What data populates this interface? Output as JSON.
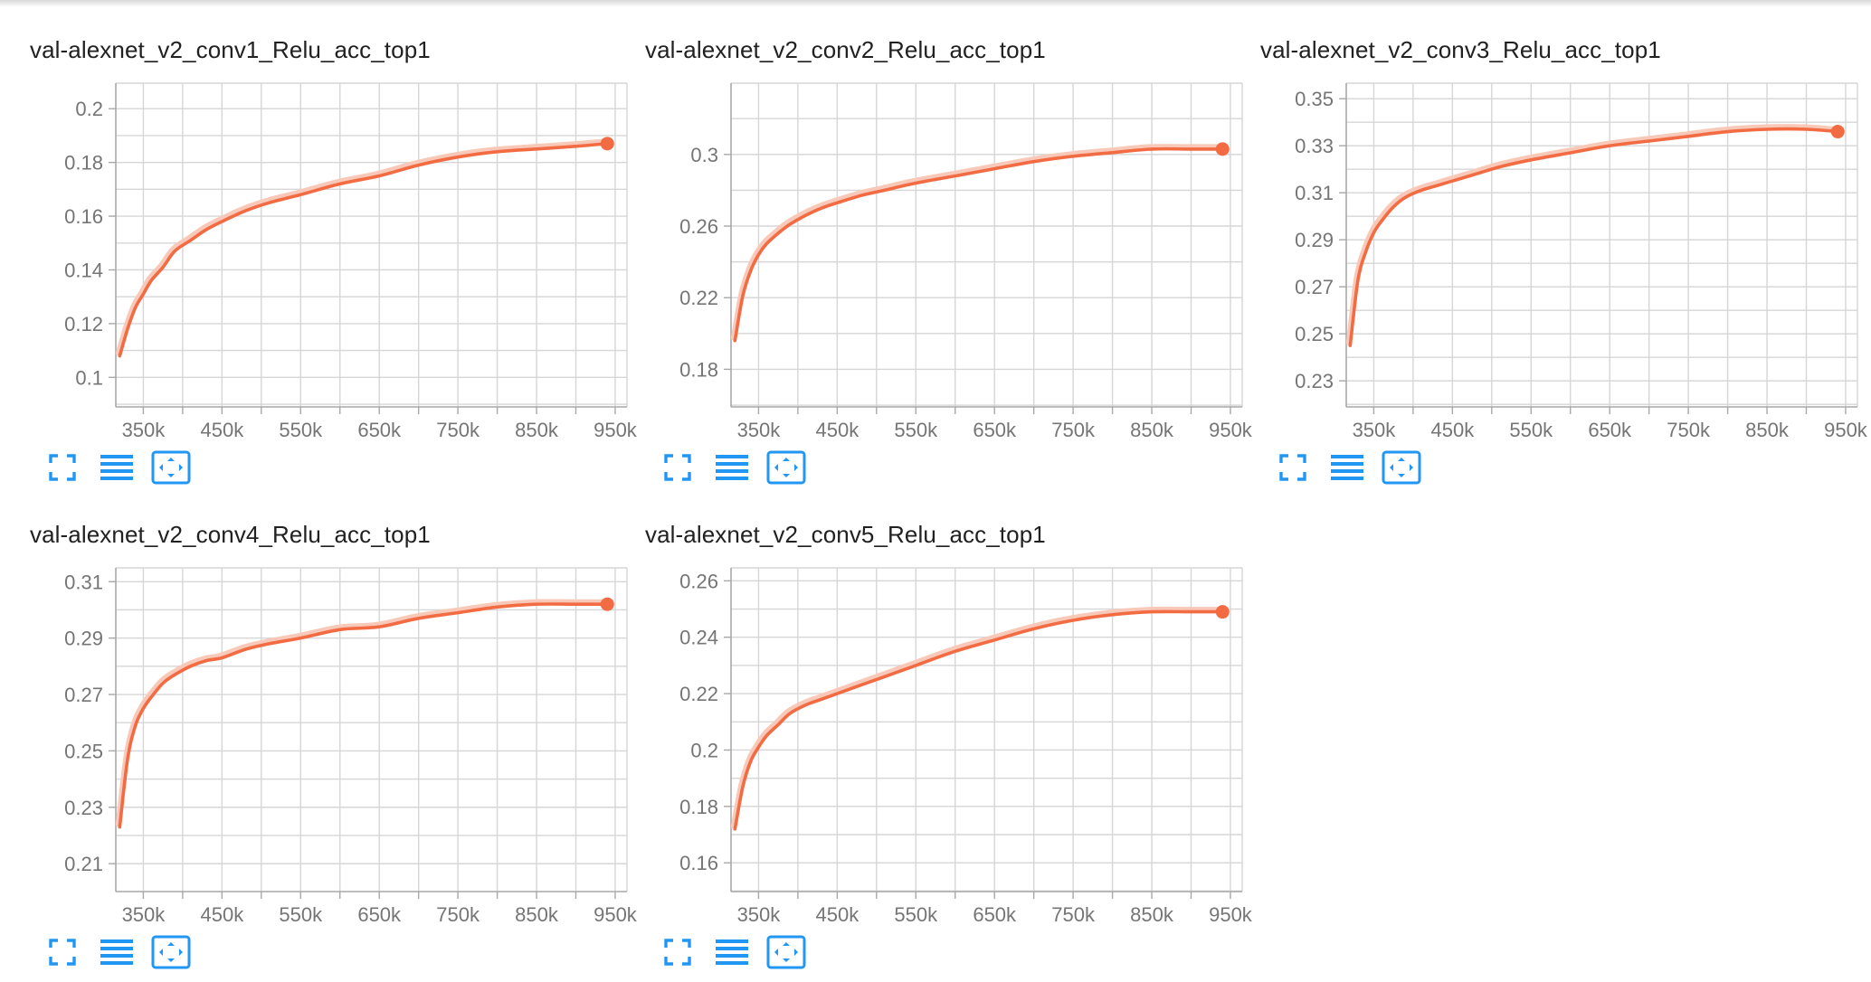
{
  "colors": {
    "line": "#f26b43",
    "line_raw": "#f8c9b8",
    "grid": "#d6d6d6",
    "axis": "#a8a8a8",
    "tick_text": "#757575",
    "icon": "#2196f3"
  },
  "toolbar": {
    "icons": [
      "fullscreen-icon",
      "data-table-icon",
      "fit-domain-icon"
    ]
  },
  "chart_data": [
    {
      "type": "line",
      "title": "val-alexnet_v2_conv1_Relu_acc_top1",
      "x": [
        320,
        330,
        340,
        350,
        360,
        375,
        390,
        410,
        430,
        450,
        480,
        510,
        550,
        600,
        650,
        700,
        750,
        800,
        850,
        900,
        940
      ],
      "x_ticks": [
        350,
        450,
        550,
        650,
        750,
        850,
        950
      ],
      "x_tick_labels": [
        "350k",
        "450k",
        "550k",
        "650k",
        "750k",
        "850k",
        "950k"
      ],
      "xlim": [
        315,
        965
      ],
      "y_ticks": [
        0.1,
        0.12,
        0.14,
        0.16,
        0.18,
        0.2
      ],
      "y_tick_labels": [
        "0.1",
        "0.12",
        "0.14",
        "0.16",
        "0.18",
        "0.2"
      ],
      "ylim": [
        0.089,
        0.2095
      ],
      "series": [
        {
          "values": [
            0.108,
            0.118,
            0.126,
            0.131,
            0.136,
            0.141,
            0.147,
            0.151,
            0.155,
            0.158,
            0.162,
            0.165,
            0.168,
            0.172,
            0.175,
            0.179,
            0.182,
            0.184,
            0.185,
            0.186,
            0.187
          ]
        }
      ]
    },
    {
      "type": "line",
      "title": "val-alexnet_v2_conv2_Relu_acc_top1",
      "x": [
        320,
        330,
        340,
        350,
        360,
        375,
        390,
        410,
        430,
        450,
        480,
        510,
        550,
        600,
        650,
        700,
        750,
        800,
        850,
        900,
        940
      ],
      "x_ticks": [
        350,
        450,
        550,
        650,
        750,
        850,
        950
      ],
      "x_tick_labels": [
        "350k",
        "450k",
        "550k",
        "650k",
        "750k",
        "850k",
        "950k"
      ],
      "xlim": [
        315,
        965
      ],
      "y_ticks": [
        0.18,
        0.22,
        0.26,
        0.3
      ],
      "y_tick_labels": [
        "0.18",
        "0.22",
        "0.26",
        "0.3"
      ],
      "ylim": [
        0.159,
        0.3398
      ],
      "series": [
        {
          "values": [
            0.196,
            0.221,
            0.235,
            0.244,
            0.25,
            0.256,
            0.261,
            0.266,
            0.27,
            0.273,
            0.277,
            0.28,
            0.284,
            0.288,
            0.292,
            0.296,
            0.299,
            0.301,
            0.303,
            0.303,
            0.303
          ]
        }
      ]
    },
    {
      "type": "line",
      "title": "val-alexnet_v2_conv3_Relu_acc_top1",
      "x": [
        320,
        330,
        340,
        350,
        360,
        375,
        390,
        410,
        430,
        450,
        480,
        510,
        550,
        600,
        650,
        700,
        750,
        800,
        850,
        900,
        940
      ],
      "x_ticks": [
        350,
        450,
        550,
        650,
        750,
        850,
        950
      ],
      "x_tick_labels": [
        "350k",
        "450k",
        "550k",
        "650k",
        "750k",
        "850k",
        "950k"
      ],
      "xlim": [
        315,
        965
      ],
      "y_ticks": [
        0.23,
        0.25,
        0.27,
        0.29,
        0.31,
        0.33,
        0.35
      ],
      "y_tick_labels": [
        "0.23",
        "0.25",
        "0.27",
        "0.29",
        "0.31",
        "0.33",
        "0.35"
      ],
      "ylim": [
        0.2189,
        0.3566
      ],
      "series": [
        {
          "values": [
            0.245,
            0.273,
            0.285,
            0.293,
            0.298,
            0.304,
            0.308,
            0.311,
            0.313,
            0.315,
            0.318,
            0.321,
            0.324,
            0.327,
            0.33,
            0.332,
            0.334,
            0.336,
            0.337,
            0.337,
            0.336
          ]
        }
      ]
    },
    {
      "type": "line",
      "title": "val-alexnet_v2_conv4_Relu_acc_top1",
      "x": [
        320,
        330,
        340,
        350,
        360,
        375,
        390,
        410,
        430,
        450,
        480,
        510,
        550,
        600,
        650,
        700,
        750,
        800,
        850,
        900,
        940
      ],
      "x_ticks": [
        350,
        450,
        550,
        650,
        750,
        850,
        950
      ],
      "x_tick_labels": [
        "350k",
        "450k",
        "550k",
        "650k",
        "750k",
        "850k",
        "950k"
      ],
      "xlim": [
        315,
        965
      ],
      "y_ticks": [
        0.21,
        0.23,
        0.25,
        0.27,
        0.29,
        0.31
      ],
      "y_tick_labels": [
        "0.21",
        "0.23",
        "0.25",
        "0.27",
        "0.29",
        "0.31"
      ],
      "ylim": [
        0.2001,
        0.3149
      ],
      "series": [
        {
          "values": [
            0.223,
            0.247,
            0.259,
            0.265,
            0.269,
            0.274,
            0.277,
            0.28,
            0.282,
            0.283,
            0.286,
            0.288,
            0.29,
            0.293,
            0.294,
            0.297,
            0.299,
            0.301,
            0.302,
            0.302,
            0.302
          ]
        }
      ]
    },
    {
      "type": "line",
      "title": "val-alexnet_v2_conv5_Relu_acc_top1",
      "x": [
        320,
        330,
        340,
        350,
        360,
        375,
        390,
        410,
        430,
        450,
        480,
        510,
        550,
        600,
        650,
        700,
        750,
        800,
        850,
        900,
        940
      ],
      "x_ticks": [
        350,
        450,
        550,
        650,
        750,
        850,
        950
      ],
      "x_tick_labels": [
        "350k",
        "450k",
        "550k",
        "650k",
        "750k",
        "850k",
        "950k"
      ],
      "xlim": [
        315,
        965
      ],
      "y_ticks": [
        0.16,
        0.18,
        0.2,
        0.22,
        0.24,
        0.26
      ],
      "y_tick_labels": [
        "0.16",
        "0.18",
        "0.2",
        "0.22",
        "0.24",
        "0.26"
      ],
      "ylim": [
        0.1498,
        0.2646
      ],
      "series": [
        {
          "values": [
            0.172,
            0.187,
            0.196,
            0.201,
            0.205,
            0.209,
            0.213,
            0.216,
            0.218,
            0.22,
            0.223,
            0.226,
            0.23,
            0.235,
            0.239,
            0.243,
            0.246,
            0.248,
            0.249,
            0.249,
            0.249
          ]
        }
      ]
    }
  ]
}
